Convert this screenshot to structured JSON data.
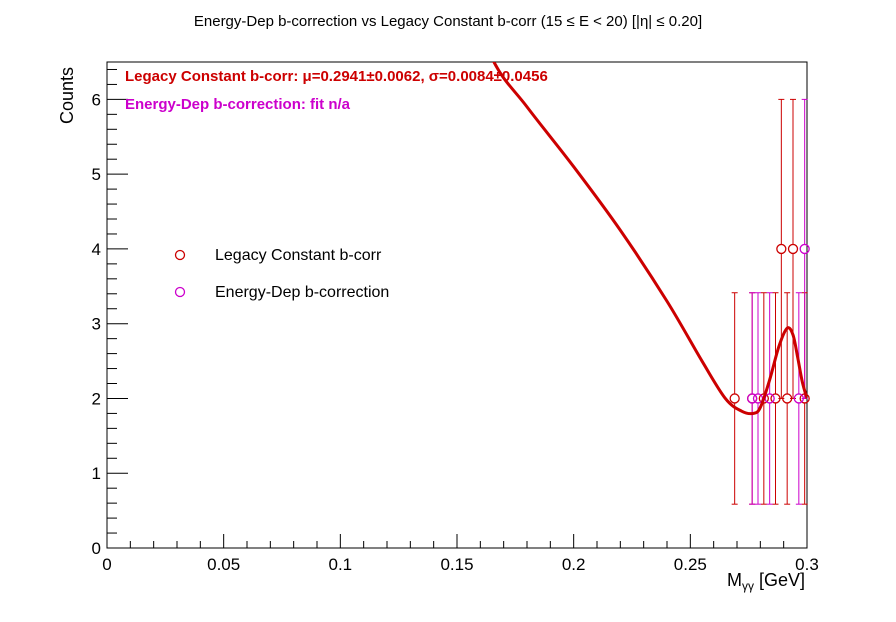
{
  "chart_data": {
    "type": "scatter",
    "title": "Energy-Dep b-correction vs Legacy Constant b-corr   (15 ≤ E < 20)   [|η| ≤ 0.20]",
    "xlabel": "Mγγ [GeV]",
    "ylabel": "Counts",
    "xlim": [
      0,
      0.3
    ],
    "ylim": [
      0,
      6.5
    ],
    "x_ticks": [
      "0",
      "0.05",
      "0.1",
      "0.15",
      "0.2",
      "0.25",
      "0.3"
    ],
    "y_ticks": [
      "0",
      "1",
      "2",
      "3",
      "4",
      "5",
      "6"
    ],
    "grid": false,
    "legend_position": "left-middle",
    "series": [
      {
        "name": "Legacy Constant b-corr",
        "color": "#cc0000",
        "marker": "open-circle",
        "points": [
          {
            "x": 0.269,
            "y": 2,
            "err": 1.414
          },
          {
            "x": 0.2765,
            "y": 2,
            "err": 1.414
          },
          {
            "x": 0.2815,
            "y": 2,
            "err": 1.414
          },
          {
            "x": 0.2865,
            "y": 2,
            "err": 1.414
          },
          {
            "x": 0.289,
            "y": 4,
            "err": 2.0
          },
          {
            "x": 0.2915,
            "y": 2,
            "err": 1.414
          },
          {
            "x": 0.294,
            "y": 4,
            "err": 2.0
          },
          {
            "x": 0.299,
            "y": 2,
            "err": 1.414
          }
        ]
      },
      {
        "name": "Energy-Dep b-correction",
        "color": "#cc00cc",
        "marker": "open-circle",
        "points": [
          {
            "x": 0.2765,
            "y": 2,
            "err": 1.414
          },
          {
            "x": 0.279,
            "y": 2,
            "err": 1.414
          },
          {
            "x": 0.284,
            "y": 2,
            "err": 1.414
          },
          {
            "x": 0.2965,
            "y": 2,
            "err": 1.414
          },
          {
            "x": 0.299,
            "y": 4,
            "err": 2.0
          }
        ]
      }
    ],
    "fit_curve": {
      "series": "Legacy Constant b-corr",
      "color": "#cc0000",
      "points": [
        [
          0.15,
          7.8
        ],
        [
          0.165,
          6.55
        ],
        [
          0.18,
          5.9
        ],
        [
          0.2,
          5.1
        ],
        [
          0.22,
          4.25
        ],
        [
          0.24,
          3.3
        ],
        [
          0.255,
          2.5
        ],
        [
          0.265,
          2.0
        ],
        [
          0.272,
          1.83
        ],
        [
          0.277,
          1.8
        ],
        [
          0.28,
          1.88
        ],
        [
          0.284,
          2.25
        ],
        [
          0.288,
          2.7
        ],
        [
          0.2915,
          2.94
        ],
        [
          0.294,
          2.85
        ],
        [
          0.296,
          2.55
        ],
        [
          0.298,
          2.22
        ],
        [
          0.3,
          2.0
        ]
      ]
    },
    "annotations": [
      {
        "text": "Legacy Constant b-corr: μ=0.2941±0.0062,  σ=0.0084±0.0456",
        "color": "#cc0000"
      },
      {
        "text": "Energy-Dep b-correction:  fit n/a",
        "color": "#cc00cc"
      }
    ]
  }
}
